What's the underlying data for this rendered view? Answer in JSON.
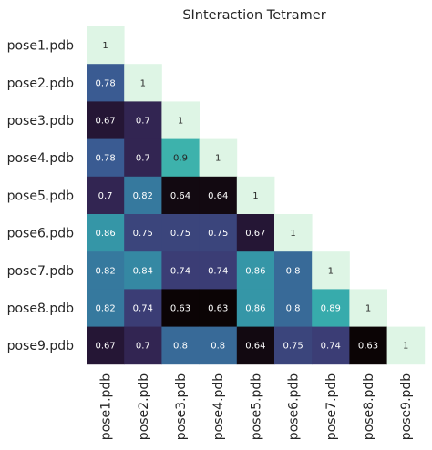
{
  "chart_data": {
    "type": "heatmap",
    "title": "SInteraction Tetramer",
    "xlabel": "",
    "ylabel": "",
    "row_labels": [
      "pose1.pdb",
      "pose2.pdb",
      "pose3.pdb",
      "pose4.pdb",
      "pose5.pdb",
      "pose6.pdb",
      "pose7.pdb",
      "pose8.pdb",
      "pose9.pdb"
    ],
    "col_labels": [
      "pose1.pdb",
      "pose2.pdb",
      "pose3.pdb",
      "pose4.pdb",
      "pose5.pdb",
      "pose6.pdb",
      "pose7.pdb",
      "pose8.pdb",
      "pose9.pdb"
    ],
    "mask": "upper-triangle",
    "colormap": "mako",
    "value_range": [
      0.63,
      1
    ],
    "grid": false,
    "colorbar": false,
    "values": [
      [
        1
      ],
      [
        0.78,
        1
      ],
      [
        0.67,
        0.7,
        1
      ],
      [
        0.78,
        0.7,
        0.9,
        1
      ],
      [
        0.7,
        0.82,
        0.64,
        0.64,
        1
      ],
      [
        0.86,
        0.75,
        0.75,
        0.75,
        0.67,
        1
      ],
      [
        0.82,
        0.84,
        0.74,
        0.74,
        0.86,
        0.8,
        1
      ],
      [
        0.82,
        0.74,
        0.63,
        0.63,
        0.86,
        0.8,
        0.89,
        1
      ],
      [
        0.67,
        0.7,
        0.8,
        0.8,
        0.64,
        0.75,
        0.74,
        0.63,
        1
      ]
    ]
  }
}
